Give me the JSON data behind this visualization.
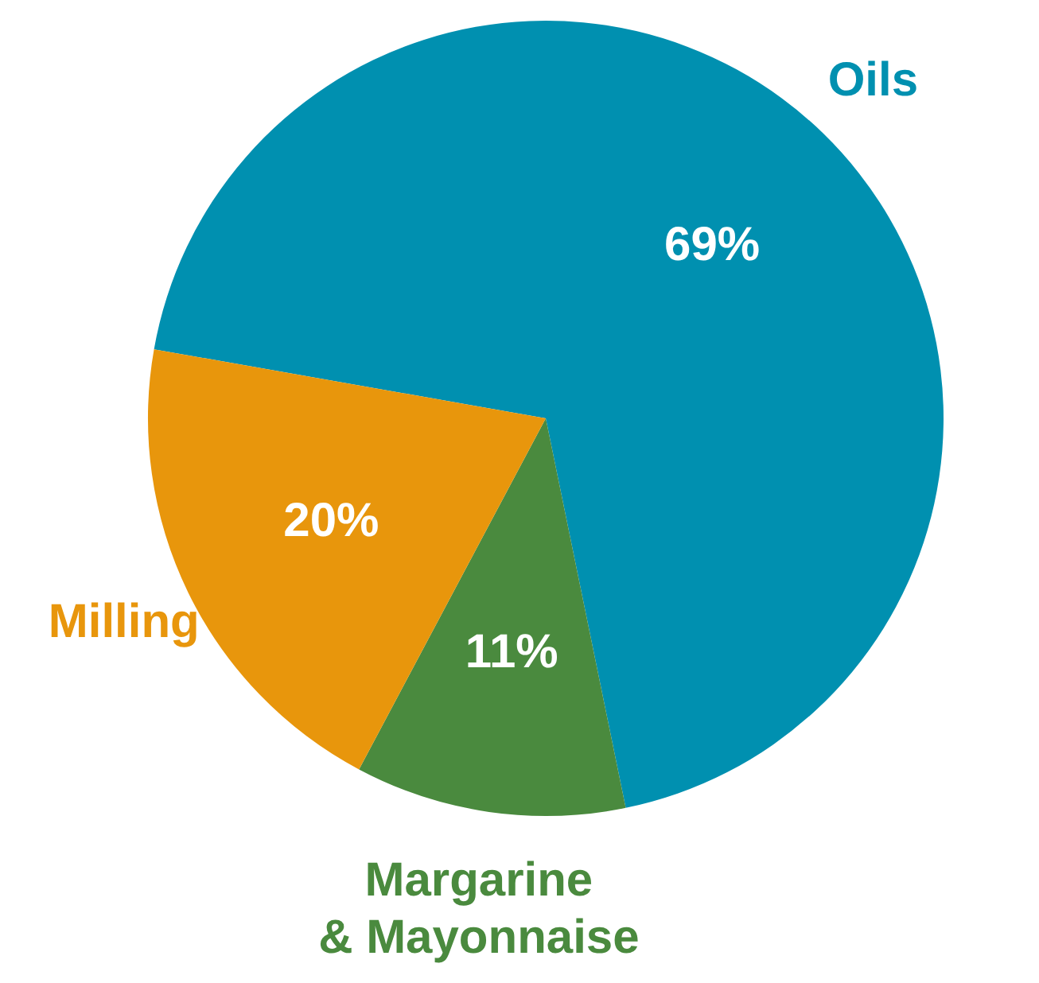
{
  "chart_data": {
    "type": "pie",
    "categories": [
      "Oils",
      "Margarine & Mayonnaise",
      "Milling"
    ],
    "values": [
      69,
      11,
      20
    ],
    "colors": [
      "#0090b0",
      "#4a8a3e",
      "#e8960c"
    ],
    "value_labels": [
      "69%",
      "11%",
      "20%"
    ],
    "legend": false
  }
}
